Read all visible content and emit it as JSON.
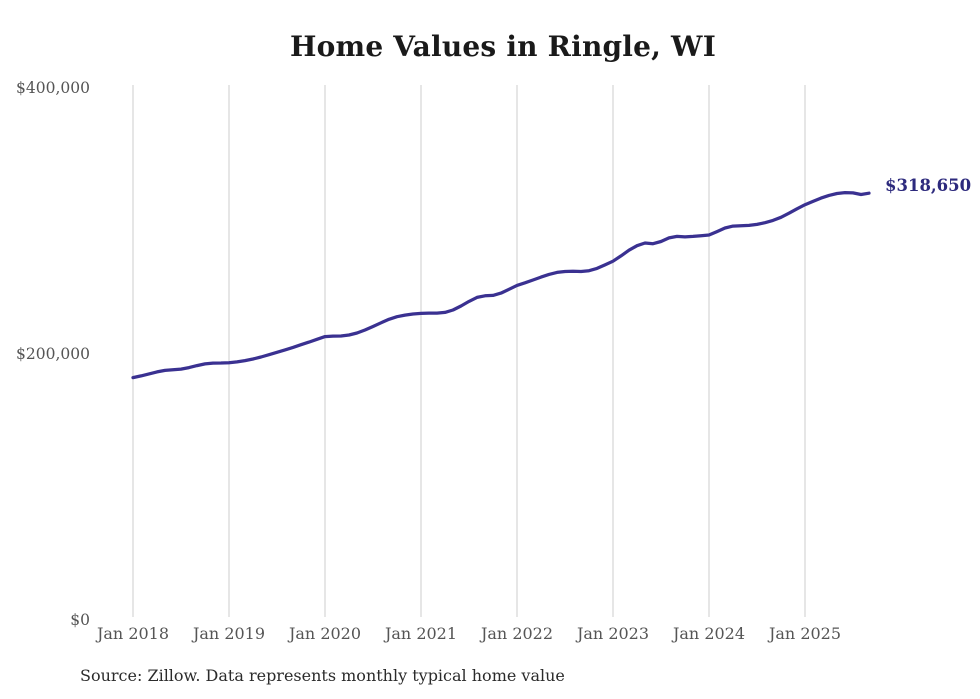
{
  "title": "Home Values in Ringle, WI",
  "source_note": "Source: Zillow. Data represents monthly typical home value",
  "end_label": "$318,650",
  "colors": {
    "background": "#ffffff",
    "line": "#3a3191",
    "end_label": "#2d2a7d",
    "grid": "#cccccc",
    "tick_text": "#555555",
    "title_text": "#1a1a1a",
    "source_text": "#2b2b2b"
  },
  "chart_data": {
    "type": "line",
    "title": "Home Values in Ringle, WI",
    "frequency": "monthly",
    "x_start": "Jan 2018",
    "x_end": "Sep 2025",
    "ylim": [
      0,
      400000
    ],
    "grid": "vertical-only",
    "legend": "none",
    "x_tick_labels": [
      "Jan 2018",
      "Jan 2019",
      "Jan 2020",
      "Jan 2021",
      "Jan 2022",
      "Jan 2023",
      "Jan 2024",
      "Jan 2025"
    ],
    "x_tick_month_indices": [
      0,
      12,
      24,
      36,
      48,
      60,
      72,
      84
    ],
    "y_ticks": [
      {
        "label": "$0",
        "value": 0
      },
      {
        "label": "$200,000",
        "value": 200000
      },
      {
        "label": "$400,000",
        "value": 400000
      }
    ],
    "last_value_label": "$318,650",
    "series": [
      {
        "name": "Typical home value",
        "values": [
          180000,
          181300,
          182800,
          184300,
          185400,
          185900,
          186400,
          187500,
          189000,
          190300,
          190900,
          191000,
          191200,
          191800,
          192800,
          194000,
          195500,
          197200,
          199000,
          200800,
          202700,
          204700,
          206700,
          208800,
          210800,
          211200,
          211300,
          212000,
          213500,
          215800,
          218400,
          221200,
          223800,
          225800,
          227000,
          227800,
          228300,
          228500,
          228500,
          229000,
          230800,
          233800,
          237300,
          240300,
          241500,
          241800,
          243500,
          246400,
          249300,
          251300,
          253400,
          255600,
          257600,
          259100,
          259800,
          259900,
          259800,
          260400,
          262100,
          264700,
          267500,
          271500,
          275800,
          279200,
          281200,
          280700,
          282300,
          285000,
          286200,
          285800,
          286200,
          286700,
          287200,
          289800,
          292500,
          293900,
          294200,
          294400,
          295200,
          296500,
          298200,
          300500,
          303600,
          306900,
          310000,
          312500,
          315000,
          317000,
          318400,
          319100,
          318900,
          317700,
          318650
        ]
      }
    ]
  }
}
